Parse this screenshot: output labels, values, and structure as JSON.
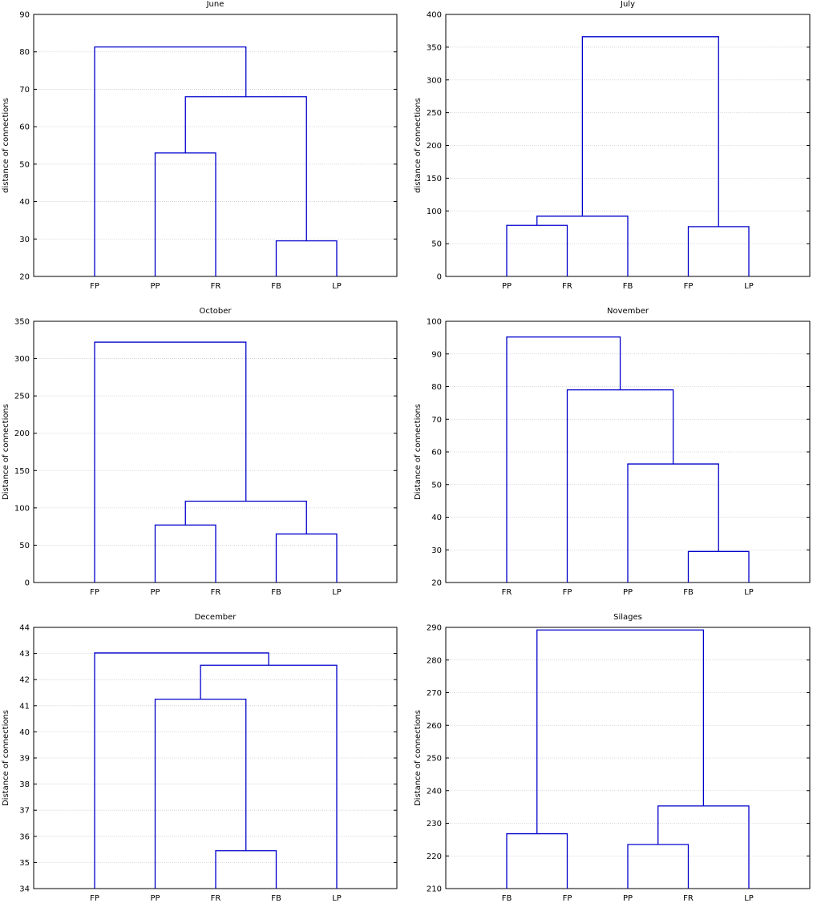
{
  "chart_data": [
    {
      "type": "dendrogram",
      "title": "June",
      "ylabel": "distance of connections",
      "ylim": [
        20,
        90
      ],
      "yticks": [
        20,
        30,
        40,
        50,
        60,
        70,
        80,
        90
      ],
      "leaves": [
        "FP",
        "PP",
        "FR",
        "FB",
        "LP"
      ],
      "merges": [
        {
          "left": [
            3
          ],
          "right": [
            4
          ],
          "height": 29.5
        },
        {
          "left": [
            1
          ],
          "right": [
            2
          ],
          "height": 53
        },
        {
          "left": [
            1,
            2
          ],
          "right": [
            3,
            4
          ],
          "height": 68
        },
        {
          "left": [
            0
          ],
          "right": [
            1,
            2,
            3,
            4
          ],
          "height": 81.3
        }
      ],
      "grid": true
    },
    {
      "type": "dendrogram",
      "title": "July",
      "ylabel": "distance of connections",
      "ylim": [
        0,
        400
      ],
      "yticks": [
        0,
        50,
        100,
        150,
        200,
        250,
        300,
        350,
        400
      ],
      "leaves": [
        "PP",
        "FR",
        "FB",
        "FP",
        "LP"
      ],
      "merges": [
        {
          "left": [
            3
          ],
          "right": [
            4
          ],
          "height": 76
        },
        {
          "left": [
            0
          ],
          "right": [
            1
          ],
          "height": 78
        },
        {
          "left": [
            0,
            1
          ],
          "right": [
            2
          ],
          "height": 92
        },
        {
          "left": [
            0,
            1,
            2
          ],
          "right": [
            3,
            4
          ],
          "height": 366
        }
      ],
      "grid": true
    },
    {
      "type": "dendrogram",
      "title": "October",
      "ylabel": "Distance of connections",
      "ylim": [
        0,
        350
      ],
      "yticks": [
        0,
        50,
        100,
        150,
        200,
        250,
        300,
        350
      ],
      "leaves": [
        "FP",
        "PP",
        "FR",
        "FB",
        "LP"
      ],
      "merges": [
        {
          "left": [
            3
          ],
          "right": [
            4
          ],
          "height": 65
        },
        {
          "left": [
            1
          ],
          "right": [
            2
          ],
          "height": 77
        },
        {
          "left": [
            1,
            2
          ],
          "right": [
            3,
            4
          ],
          "height": 109
        },
        {
          "left": [
            0
          ],
          "right": [
            1,
            2,
            3,
            4
          ],
          "height": 322
        }
      ],
      "grid": true
    },
    {
      "type": "dendrogram",
      "title": "November",
      "ylabel": "Distance of connections",
      "ylim": [
        20,
        100
      ],
      "yticks": [
        20,
        30,
        40,
        50,
        60,
        70,
        80,
        90,
        100
      ],
      "leaves": [
        "FR",
        "FP",
        "PP",
        "FB",
        "LP"
      ],
      "merges": [
        {
          "left": [
            3
          ],
          "right": [
            4
          ],
          "height": 29.5
        },
        {
          "left": [
            2
          ],
          "right": [
            3,
            4
          ],
          "height": 56.3
        },
        {
          "left": [
            1
          ],
          "right": [
            2,
            3,
            4
          ],
          "height": 79
        },
        {
          "left": [
            0
          ],
          "right": [
            1,
            2,
            3,
            4
          ],
          "height": 95.2
        }
      ],
      "grid": true
    },
    {
      "type": "dendrogram",
      "title": "December",
      "ylabel": "Distance of connections",
      "ylim": [
        34,
        44
      ],
      "yticks": [
        34,
        35,
        36,
        37,
        38,
        39,
        40,
        41,
        42,
        43,
        44
      ],
      "leaves": [
        "FP",
        "PP",
        "FR",
        "FB",
        "LP"
      ],
      "merges": [
        {
          "left": [
            2
          ],
          "right": [
            3
          ],
          "height": 35.45
        },
        {
          "left": [
            1
          ],
          "right": [
            2,
            3
          ],
          "height": 41.25
        },
        {
          "left": [
            1,
            2,
            3
          ],
          "right": [
            4
          ],
          "height": 42.55
        },
        {
          "left": [
            0
          ],
          "right": [
            1,
            2,
            3,
            4
          ],
          "height": 43.02
        }
      ],
      "grid": true
    },
    {
      "type": "dendrogram",
      "title": "Silages",
      "ylabel": "Distance of connections",
      "ylim": [
        210,
        290
      ],
      "yticks": [
        210,
        220,
        230,
        240,
        250,
        260,
        270,
        280,
        290
      ],
      "leaves": [
        "FB",
        "FP",
        "PP",
        "FR",
        "LP"
      ],
      "merges": [
        {
          "left": [
            2
          ],
          "right": [
            3
          ],
          "height": 223.5
        },
        {
          "left": [
            0
          ],
          "right": [
            1
          ],
          "height": 226.8
        },
        {
          "left": [
            2,
            3
          ],
          "right": [
            4
          ],
          "height": 235.3
        },
        {
          "left": [
            0,
            1
          ],
          "right": [
            2,
            3,
            4
          ],
          "height": 289.2
        }
      ],
      "grid": true
    }
  ],
  "colors": {
    "link": "#0000cc",
    "grid": "#c8c8c8",
    "frame": "#000000"
  }
}
